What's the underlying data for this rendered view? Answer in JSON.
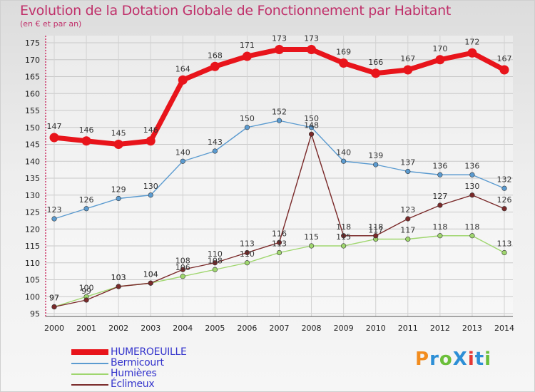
{
  "title": "Evolution de la Dotation Globale de Fonctionnement par Habitant",
  "subtitle": "(en € et par an)",
  "logo": {
    "text": "ProXiti",
    "colors": [
      "#f28c1e",
      "#2d8fd6",
      "#6bbf3a",
      "#2d8fd6",
      "#e53935",
      "#2d8fd6",
      "#6bbf3a"
    ]
  },
  "chart_data": {
    "type": "line",
    "title": "Evolution de la Dotation Globale de Fonctionnement par Habitant",
    "subtitle": "(en € et par an)",
    "x": [
      "2000",
      "2001",
      "2002",
      "2003",
      "2004",
      "2005",
      "2006",
      "2007",
      "2008",
      "2009",
      "2010",
      "2011",
      "2012",
      "2013",
      "2014"
    ],
    "ylim": [
      95,
      175
    ],
    "yticks": [
      95,
      100,
      105,
      110,
      115,
      120,
      125,
      130,
      135,
      140,
      145,
      150,
      155,
      160,
      165,
      170,
      175
    ],
    "grid": true,
    "legend_position": "bottom-left",
    "series": [
      {
        "name": "HUMEROEUILLE",
        "color": "#e8141b",
        "values": [
          147,
          146,
          145,
          146,
          164,
          168,
          171,
          173,
          173,
          169,
          166,
          167,
          170,
          172,
          167
        ]
      },
      {
        "name": "Bermicourt",
        "color": "#5b9bd0",
        "values": [
          123,
          126,
          129,
          130,
          140,
          143,
          150,
          152,
          150,
          140,
          139,
          137,
          136,
          136,
          132
        ]
      },
      {
        "name": "Humières",
        "color": "#9fd66e",
        "values": [
          97,
          100,
          103,
          104,
          106,
          108,
          110,
          113,
          115,
          115,
          117,
          117,
          118,
          118,
          113
        ]
      },
      {
        "name": "Éclimeux",
        "color": "#7a2a2a",
        "values": [
          97,
          99,
          103,
          104,
          108,
          110,
          113,
          116,
          148,
          118,
          118,
          123,
          127,
          130,
          126
        ]
      }
    ]
  }
}
